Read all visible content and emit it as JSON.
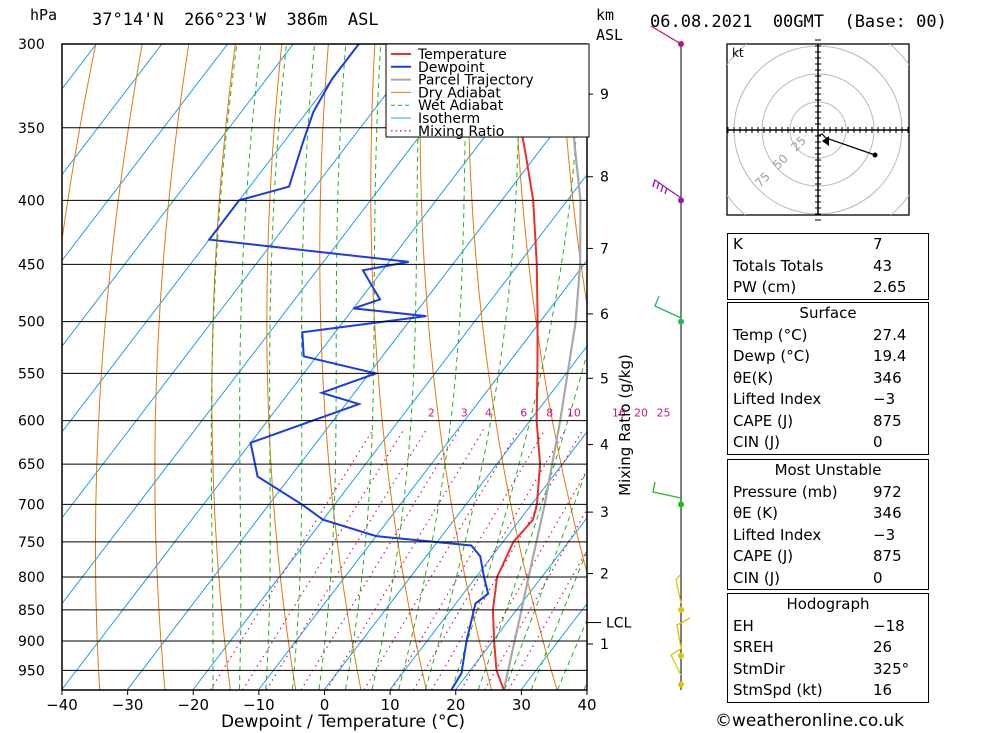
{
  "header": {
    "hpa_unit": "hPa",
    "location": "37°14'N  266°23'W  386m  ASL",
    "km_unit": "km",
    "asl_unit": "ASL",
    "date": "06.08.2021  00GMT  (Base: 00)"
  },
  "legend": [
    "Temperature",
    "Dewpoint",
    "Parcel Trajectory",
    "Dry Adiabat",
    "Wet Adiabat",
    "Isotherm",
    "Mixing Ratio"
  ],
  "colors": {
    "temperature": "#e8302a",
    "dewpoint": "#1a3ce0",
    "parcel": "#a8a8a8",
    "dry_adiabat": "#e07a10",
    "wet_adiabat": "#22b022",
    "isotherm": "#22a0e0",
    "mixing_ratio": "#c8187c"
  },
  "chart_data": {
    "type": "line",
    "xlabel": "Dewpoint / Temperature (°C)",
    "ylabel": "hPa",
    "y2label": "Mixing Ratio (g/kg)",
    "xlim": [
      -40,
      40
    ],
    "ylim": [
      300,
      985
    ],
    "pressure_ticks": [
      "300",
      "350",
      "400",
      "450",
      "500",
      "550",
      "600",
      "650",
      "700",
      "750",
      "800",
      "850",
      "900",
      "950"
    ],
    "temp_ticks": [
      "−40",
      "−30",
      "−20",
      "−10",
      "0",
      "10",
      "20",
      "30",
      "40"
    ],
    "km_ticks": [
      {
        "label": "1",
        "p": 905
      },
      {
        "label": "2",
        "p": 795
      },
      {
        "label": "3",
        "p": 710
      },
      {
        "label": "4",
        "p": 627
      },
      {
        "label": "5",
        "p": 555
      },
      {
        "label": "6",
        "p": 493
      },
      {
        "label": "7",
        "p": 437
      },
      {
        "label": "8",
        "p": 383
      },
      {
        "label": "9",
        "p": 329
      }
    ],
    "lcl": {
      "label": "LCL",
      "p": 870
    },
    "mixing_ratio_labels": [
      "2",
      "3",
      "4",
      "6",
      "8",
      "10",
      "16",
      "20",
      "25"
    ],
    "series": [
      {
        "name": "Temperature",
        "points": [
          [
            985,
            27.4
          ],
          [
            950,
            24.0
          ],
          [
            900,
            20.2
          ],
          [
            850,
            16.4
          ],
          [
            800,
            13.2
          ],
          [
            750,
            11.6
          ],
          [
            720,
            12.0
          ],
          [
            700,
            10.8
          ],
          [
            650,
            6.6
          ],
          [
            600,
            1.0
          ],
          [
            550,
            -4.4
          ],
          [
            500,
            -10.4
          ],
          [
            450,
            -17.2
          ],
          [
            400,
            -25.2
          ],
          [
            370,
            -31.2
          ],
          [
            340,
            -37.8
          ],
          [
            300,
            -47.8
          ]
        ]
      },
      {
        "name": "Dewpoint",
        "points": [
          [
            985,
            19.4
          ],
          [
            955,
            19.0
          ],
          [
            900,
            16.0
          ],
          [
            840,
            13.0
          ],
          [
            825,
            13.8
          ],
          [
            800,
            11.2
          ],
          [
            770,
            8.2
          ],
          [
            755,
            5.6
          ],
          [
            742,
            -10.0
          ],
          [
            720,
            -20.0
          ],
          [
            700,
            -25.0
          ],
          [
            665,
            -35.0
          ],
          [
            625,
            -40.0
          ],
          [
            582,
            -28.0
          ],
          [
            570,
            -35.0
          ],
          [
            550,
            -29.0
          ],
          [
            533,
            -42.0
          ],
          [
            510,
            -45.0
          ],
          [
            495,
            -28.0
          ],
          [
            488,
            -40.0
          ],
          [
            480,
            -37.0
          ],
          [
            455,
            -43.0
          ],
          [
            448,
            -37.0
          ],
          [
            430,
            -70.0
          ],
          [
            400,
            -70.0
          ],
          [
            390,
            -64.0
          ],
          [
            360,
            -67.0
          ],
          [
            340,
            -69.0
          ],
          [
            320,
            -70.0
          ],
          [
            300,
            -70.0
          ]
        ]
      },
      {
        "name": "Parcel Trajectory",
        "points": [
          [
            985,
            27.4
          ],
          [
            870,
            21.8
          ],
          [
            800,
            18.0
          ],
          [
            700,
            12.0
          ],
          [
            600,
            4.6
          ],
          [
            500,
            -4.6
          ],
          [
            450,
            -10.6
          ],
          [
            400,
            -18.0
          ],
          [
            360,
            -25.6
          ],
          [
            300,
            -38.0
          ]
        ]
      }
    ]
  },
  "hodograph": {
    "unit": "kt",
    "ring_labels": [
      "25",
      "50",
      "75"
    ]
  },
  "indices": [
    {
      "rows": [
        {
          "k": "K",
          "v": "7"
        },
        {
          "k": "Totals Totals",
          "v": "43"
        },
        {
          "k": "PW (cm)",
          "v": "2.65"
        }
      ]
    },
    {
      "title": "Surface",
      "rows": [
        {
          "k": "Temp (°C)",
          "v": "27.4"
        },
        {
          "k": "Dewp (°C)",
          "v": "19.4"
        },
        {
          "k": "θE(K)",
          "v": "346"
        },
        {
          "k": "Lifted Index",
          "v": "−3"
        },
        {
          "k": "CAPE (J)",
          "v": "875"
        },
        {
          "k": "CIN (J)",
          "v": "0"
        }
      ]
    },
    {
      "title": "Most Unstable",
      "rows": [
        {
          "k": "Pressure (mb)",
          "v": "972"
        },
        {
          "k": "θE (K)",
          "v": "346"
        },
        {
          "k": "Lifted Index",
          "v": "−3"
        },
        {
          "k": "CAPE (J)",
          "v": "875"
        },
        {
          "k": "CIN (J)",
          "v": "0"
        }
      ]
    },
    {
      "title": "Hodograph",
      "rows": [
        {
          "k": "EH",
          "v": "−18"
        },
        {
          "k": "SREH",
          "v": "26"
        },
        {
          "k": "StmDir",
          "v": "325°"
        },
        {
          "k": "StmSpd (kt)",
          "v": "16"
        }
      ]
    }
  ],
  "credit": "©weatheronline.co.uk"
}
